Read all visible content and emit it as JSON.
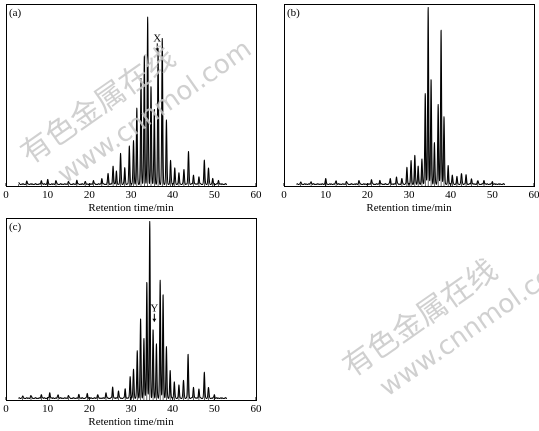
{
  "watermark": {
    "chinese": "有色金属在线",
    "url": "www.cnnmol.com",
    "color": "#c8c8c8"
  },
  "chart_data": [
    {
      "type": "line",
      "panel_label": "(a)",
      "xlabel": "Retention time/min",
      "ylabel": "",
      "xlim": [
        0,
        60
      ],
      "xticks": [
        0,
        10,
        20,
        30,
        40,
        50,
        60
      ],
      "ylim": [
        0,
        100
      ],
      "annotation": {
        "text": "X",
        "x": 36.3,
        "y": 74
      },
      "peaks": [
        {
          "x": 3.0,
          "h": 1
        },
        {
          "x": 5.0,
          "h": 1.5
        },
        {
          "x": 8.5,
          "h": 2
        },
        {
          "x": 10.0,
          "h": 2.5
        },
        {
          "x": 12.0,
          "h": 2
        },
        {
          "x": 15.0,
          "h": 1.5
        },
        {
          "x": 17.0,
          "h": 2
        },
        {
          "x": 19.0,
          "h": 1.5
        },
        {
          "x": 21.0,
          "h": 2
        },
        {
          "x": 23.0,
          "h": 3
        },
        {
          "x": 24.5,
          "h": 6
        },
        {
          "x": 25.7,
          "h": 10
        },
        {
          "x": 26.5,
          "h": 7
        },
        {
          "x": 27.5,
          "h": 17
        },
        {
          "x": 28.5,
          "h": 9
        },
        {
          "x": 29.6,
          "h": 21
        },
        {
          "x": 30.6,
          "h": 24
        },
        {
          "x": 31.4,
          "h": 42
        },
        {
          "x": 32.4,
          "h": 58
        },
        {
          "x": 33.2,
          "h": 71
        },
        {
          "x": 34.0,
          "h": 92
        },
        {
          "x": 34.8,
          "h": 54
        },
        {
          "x": 35.6,
          "h": 41
        },
        {
          "x": 36.5,
          "h": 74
        },
        {
          "x": 37.5,
          "h": 80
        },
        {
          "x": 38.5,
          "h": 35
        },
        {
          "x": 39.5,
          "h": 13
        },
        {
          "x": 40.5,
          "h": 9
        },
        {
          "x": 41.5,
          "h": 6
        },
        {
          "x": 42.7,
          "h": 8
        },
        {
          "x": 43.8,
          "h": 18
        },
        {
          "x": 45.0,
          "h": 5
        },
        {
          "x": 46.3,
          "h": 4
        },
        {
          "x": 47.6,
          "h": 13
        },
        {
          "x": 48.6,
          "h": 9
        },
        {
          "x": 49.6,
          "h": 3
        },
        {
          "x": 51.0,
          "h": 2
        }
      ]
    },
    {
      "type": "line",
      "panel_label": "(b)",
      "xlabel": "Retention time/min",
      "ylabel": "",
      "xlim": [
        0,
        60
      ],
      "xticks": [
        0,
        10,
        20,
        30,
        40,
        50,
        60
      ],
      "ylim": [
        0,
        100
      ],
      "peaks": [
        {
          "x": 4.0,
          "h": 1
        },
        {
          "x": 6.5,
          "h": 1.5
        },
        {
          "x": 10.0,
          "h": 3
        },
        {
          "x": 12.5,
          "h": 2
        },
        {
          "x": 15.0,
          "h": 1.5
        },
        {
          "x": 18.0,
          "h": 2
        },
        {
          "x": 21.0,
          "h": 2.5
        },
        {
          "x": 23.0,
          "h": 2
        },
        {
          "x": 25.5,
          "h": 3
        },
        {
          "x": 27.0,
          "h": 4
        },
        {
          "x": 28.3,
          "h": 3
        },
        {
          "x": 29.5,
          "h": 9
        },
        {
          "x": 30.5,
          "h": 13
        },
        {
          "x": 31.4,
          "h": 16
        },
        {
          "x": 32.2,
          "h": 10
        },
        {
          "x": 33.1,
          "h": 14
        },
        {
          "x": 33.9,
          "h": 50
        },
        {
          "x": 34.6,
          "h": 97
        },
        {
          "x": 35.3,
          "h": 58
        },
        {
          "x": 36.1,
          "h": 23
        },
        {
          "x": 37.0,
          "h": 44
        },
        {
          "x": 37.7,
          "h": 85
        },
        {
          "x": 38.4,
          "h": 37
        },
        {
          "x": 39.4,
          "h": 10
        },
        {
          "x": 40.4,
          "h": 5
        },
        {
          "x": 41.5,
          "h": 4
        },
        {
          "x": 42.6,
          "h": 6
        },
        {
          "x": 43.7,
          "h": 5
        },
        {
          "x": 45.0,
          "h": 3
        },
        {
          "x": 46.5,
          "h": 2
        },
        {
          "x": 48.0,
          "h": 2
        },
        {
          "x": 50.0,
          "h": 1.5
        }
      ]
    },
    {
      "type": "line",
      "panel_label": "(c)",
      "xlabel": "Retention time/min",
      "ylabel": "",
      "xlim": [
        0,
        60
      ],
      "xticks": [
        0,
        10,
        20,
        30,
        40,
        50,
        60
      ],
      "ylim": [
        0,
        100
      ],
      "annotation": {
        "text": "Y",
        "x": 35.6,
        "y": 43
      },
      "peaks": [
        {
          "x": 4.0,
          "h": 1
        },
        {
          "x": 6.0,
          "h": 1.5
        },
        {
          "x": 8.5,
          "h": 2
        },
        {
          "x": 10.5,
          "h": 3
        },
        {
          "x": 12.5,
          "h": 2
        },
        {
          "x": 15.0,
          "h": 1.5
        },
        {
          "x": 17.5,
          "h": 2
        },
        {
          "x": 19.5,
          "h": 2.5
        },
        {
          "x": 22.0,
          "h": 2
        },
        {
          "x": 24.0,
          "h": 3
        },
        {
          "x": 25.6,
          "h": 6
        },
        {
          "x": 27.0,
          "h": 4
        },
        {
          "x": 28.6,
          "h": 5
        },
        {
          "x": 29.8,
          "h": 12
        },
        {
          "x": 30.6,
          "h": 16
        },
        {
          "x": 31.5,
          "h": 26
        },
        {
          "x": 32.3,
          "h": 44
        },
        {
          "x": 33.1,
          "h": 33
        },
        {
          "x": 33.8,
          "h": 64
        },
        {
          "x": 34.5,
          "h": 97
        },
        {
          "x": 35.3,
          "h": 38
        },
        {
          "x": 36.1,
          "h": 30
        },
        {
          "x": 37.0,
          "h": 65
        },
        {
          "x": 37.7,
          "h": 57
        },
        {
          "x": 38.5,
          "h": 28
        },
        {
          "x": 39.4,
          "h": 15
        },
        {
          "x": 40.4,
          "h": 9
        },
        {
          "x": 41.5,
          "h": 7
        },
        {
          "x": 42.6,
          "h": 10
        },
        {
          "x": 43.7,
          "h": 24
        },
        {
          "x": 45.0,
          "h": 6
        },
        {
          "x": 46.3,
          "h": 5
        },
        {
          "x": 47.6,
          "h": 14
        },
        {
          "x": 48.6,
          "h": 6
        },
        {
          "x": 50.0,
          "h": 2
        }
      ]
    }
  ]
}
